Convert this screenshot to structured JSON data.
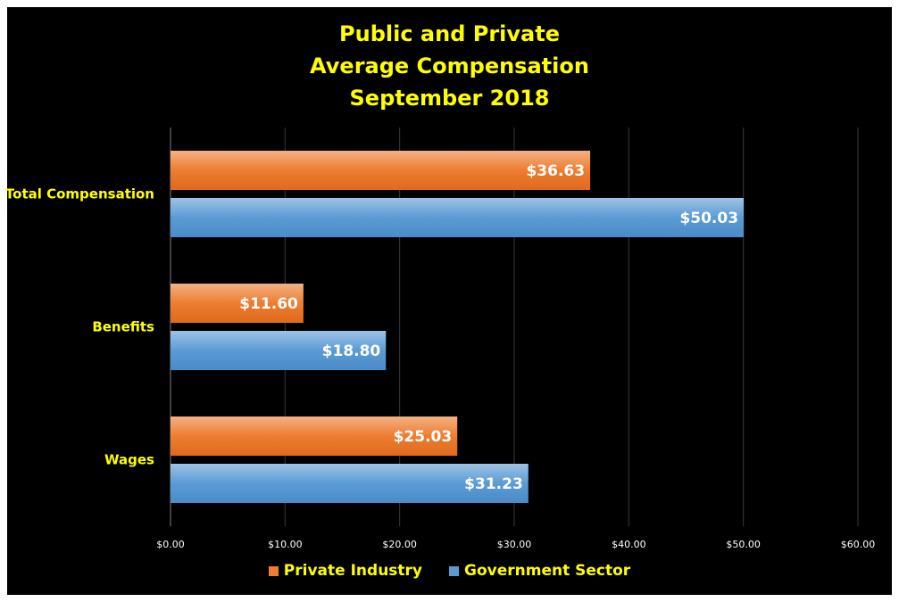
{
  "chart_data": {
    "type": "bar",
    "orientation": "horizontal",
    "title_lines": [
      "Public and Private",
      "Average Compensation",
      "September 2018"
    ],
    "categories": [
      "Total Compensation",
      "Benefits",
      "Wages"
    ],
    "series": [
      {
        "name": "Private Industry",
        "values": [
          36.63,
          11.6,
          25.03
        ],
        "labels": [
          "$36.63",
          "$11.60",
          "$25.03"
        ],
        "color": "#ED7D31"
      },
      {
        "name": "Government Sector",
        "values": [
          50.03,
          18.8,
          31.23
        ],
        "labels": [
          "$50.03",
          "$18.80",
          "$31.23"
        ],
        "color": "#5B9BD5"
      }
    ],
    "xlim": [
      0,
      60
    ],
    "x_ticks": [
      0,
      10,
      20,
      30,
      40,
      50,
      60
    ],
    "x_tick_labels": [
      "$0.00",
      "$10.00",
      "$20.00",
      "$30.00",
      "$40.00",
      "$50.00",
      "$60.00"
    ],
    "grid": true,
    "legend_position": "bottom",
    "colors": {
      "background": "#000000",
      "title": "#FFFF00",
      "category_text": "#FFFF00",
      "tick_text": "#FFFFFF",
      "value_text": "#FFFFFF",
      "legend_text": "#FFFF00",
      "grid": "#3a3a3a"
    }
  }
}
